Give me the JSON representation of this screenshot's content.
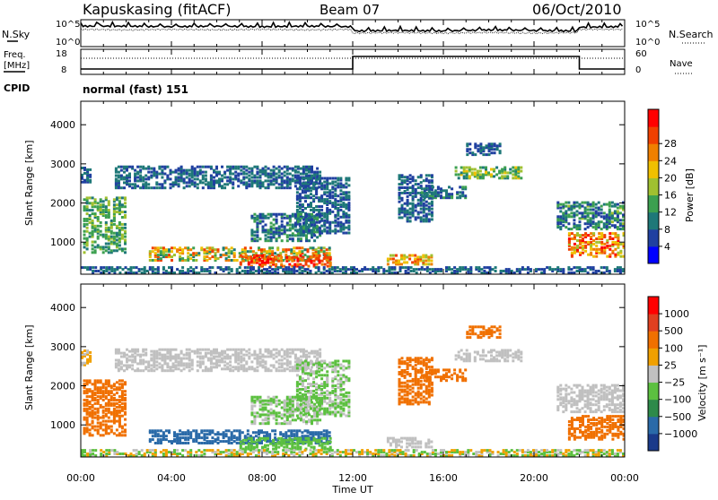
{
  "header": {
    "station": "Kapuskasing (fitACF)",
    "beam": "Beam 07",
    "date": "06/Oct/2010"
  },
  "side_labels": {
    "nsky": "N.Sky",
    "nsearch": "N.Search",
    "freq_line1": "Freq.",
    "freq_line2": "[MHz]",
    "nave": "Nave",
    "cpid": "CPID",
    "cpid_value": "normal (fast) 151"
  },
  "colors": {
    "power": [
      "#0000ff",
      "#2040a0",
      "#1e7878",
      "#3ca050",
      "#a0c030",
      "#f0c000",
      "#f08000",
      "#f04000",
      "#ff0000"
    ],
    "velocity": [
      "#1a3a8a",
      "#2a6aa8",
      "#2e8a4a",
      "#5cc040",
      "#c0c0c0",
      "#f0a000",
      "#f07000",
      "#e04020",
      "#ff0000"
    ]
  },
  "chart_data": [
    {
      "type": "line",
      "panel": "noise",
      "series": [
        {
          "name": "N.Sky",
          "x": [
            0,
            2,
            4,
            6,
            8,
            10,
            11.9,
            12,
            14,
            16,
            18,
            20,
            21.9,
            22,
            24
          ],
          "y": [
            3.8,
            3.8,
            3.7,
            3.8,
            3.7,
            3.8,
            3.7,
            2.9,
            3.0,
            2.9,
            3.1,
            3.0,
            2.9,
            3.6,
            3.7
          ]
        },
        {
          "name": "N.Search",
          "x": [
            0,
            2,
            4,
            6,
            8,
            10,
            11.9,
            12,
            14,
            16,
            18,
            20,
            21.9,
            22,
            24
          ],
          "y": [
            3.2,
            3.1,
            3.2,
            3.1,
            3.2,
            3.1,
            3.2,
            2.5,
            2.6,
            2.5,
            2.6,
            2.5,
            2.6,
            3.2,
            3.2
          ]
        }
      ],
      "ylabel_left": {
        "ticks": [
          "10^5",
          "10^0"
        ]
      },
      "ylabel_right": {
        "ticks": [
          "10^5",
          "10^0"
        ]
      },
      "xlim": [
        0,
        24
      ]
    },
    {
      "type": "line",
      "panel": "frequency",
      "series": [
        {
          "name": "Freq.",
          "x": [
            0,
            12,
            12,
            22,
            22,
            24
          ],
          "y": [
            9,
            9,
            16,
            16,
            9,
            9
          ]
        },
        {
          "name": "Nave",
          "x": [
            0,
            24
          ],
          "y": [
            30,
            30
          ]
        }
      ],
      "yticks_left": [
        "18",
        "8"
      ],
      "yticks_right": [
        "60",
        "0"
      ],
      "xlim": [
        0,
        24
      ]
    },
    {
      "type": "heatmap",
      "panel": "power",
      "ylabel": "Slant Range [km]",
      "yticks": [
        "1000",
        "2000",
        "3000",
        "4000"
      ],
      "ylim": [
        180,
        4600
      ],
      "xlim": [
        0,
        24
      ],
      "colorbar_label": "Power [dB]",
      "colorbar_ticks": [
        "4",
        "8",
        "12",
        "16",
        "20",
        "24",
        "28"
      ],
      "colorbar_range": [
        0,
        30
      ]
    },
    {
      "type": "heatmap",
      "panel": "velocity",
      "ylabel": "Slant Range [km]",
      "yticks": [
        "1000",
        "2000",
        "3000",
        "4000"
      ],
      "ylim": [
        180,
        4600
      ],
      "xlim": [
        0,
        24
      ],
      "xlabel": "Time UT",
      "xticks": [
        "00:00",
        "04:00",
        "08:00",
        "12:00",
        "16:00",
        "20:00",
        "00:00"
      ],
      "colorbar_label": "Velocity [m s⁻¹]",
      "colorbar_ticks": [
        "1000",
        "500",
        "100",
        "25",
        "−25",
        "−100",
        "−500",
        "−1000"
      ]
    }
  ]
}
